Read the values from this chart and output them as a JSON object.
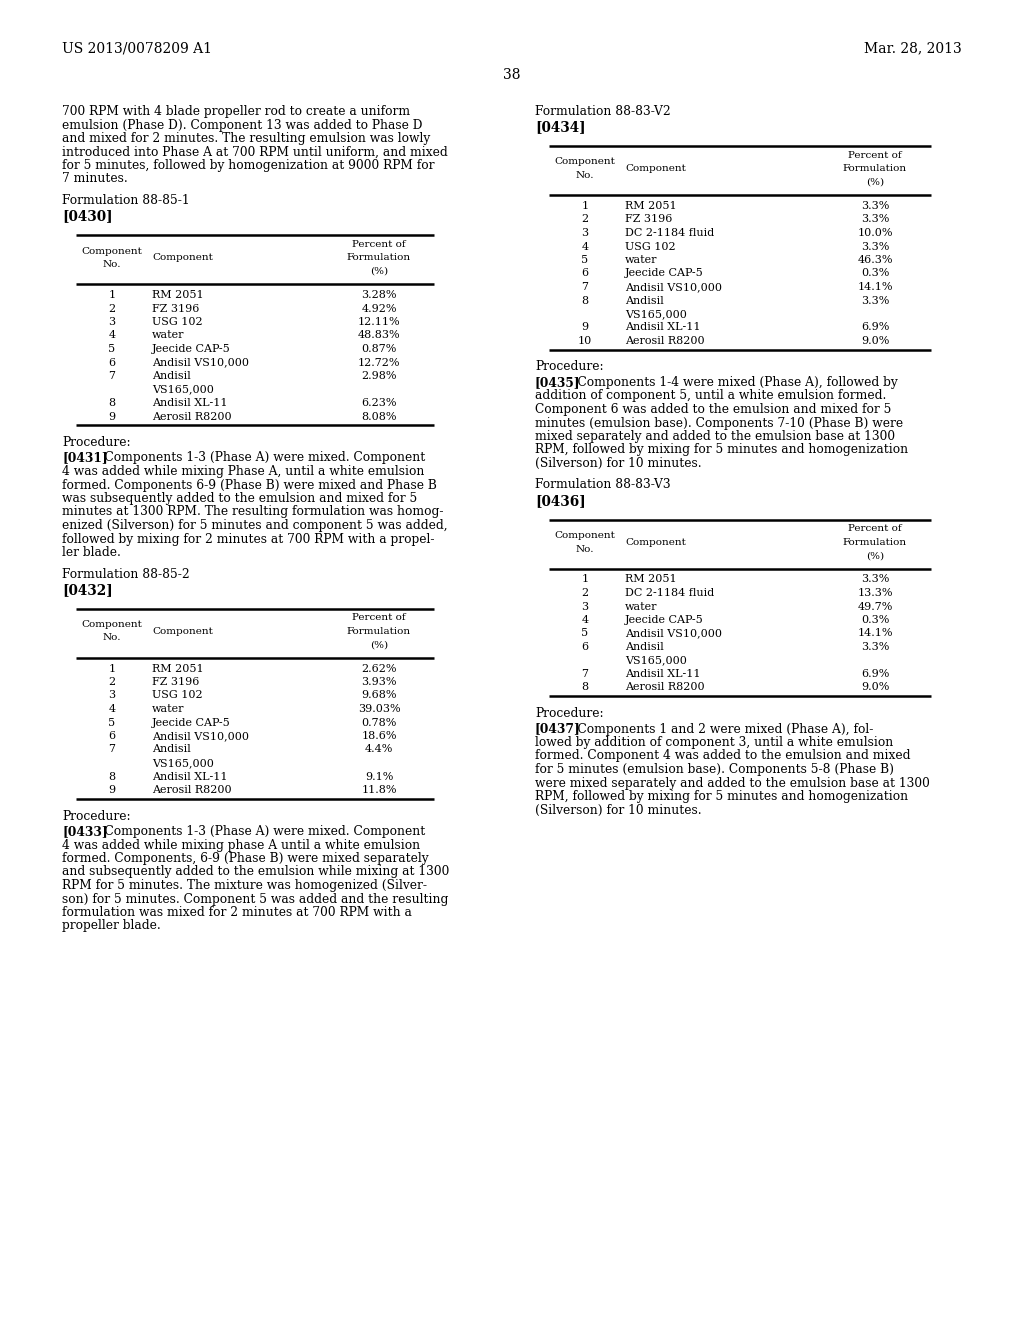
{
  "header_left": "US 2013/0078209 A1",
  "header_right": "Mar. 28, 2013",
  "page_number": "38",
  "bg": "#ffffff",
  "fg": "#000000",
  "intro_lines": [
    "700 RPM with 4 blade propeller rod to create a uniform",
    "emulsion (Phase D). Component 13 was added to Phase D",
    "and mixed for 2 minutes. The resulting emulsion was lowly",
    "introduced into Phase A at 700 RPM until uniform, and mixed",
    "for 5 minutes, followed by homogenization at 9000 RPM for",
    "7 minutes."
  ],
  "f1_title": "Formulation 88-85-1",
  "f1_ref": "[0430]",
  "t1_rows": [
    [
      "1",
      "RM 2051",
      "3.28%"
    ],
    [
      "2",
      "FZ 3196",
      "4.92%"
    ],
    [
      "3",
      "USG 102",
      "12.11%"
    ],
    [
      "4",
      "water",
      "48.83%"
    ],
    [
      "5",
      "Jeecide CAP-5",
      "0.87%"
    ],
    [
      "6",
      "Andisil VS10,000",
      "12.72%"
    ],
    [
      "7a",
      "Andisil",
      "2.98%"
    ],
    [
      "7b",
      "VS165,000",
      ""
    ],
    [
      "8",
      "Andisil XL-11",
      "6.23%"
    ],
    [
      "9",
      "Aerosil R8200",
      "8.08%"
    ]
  ],
  "p1_label": "Procedure:",
  "p1_ref": "[0431]",
  "p1_lines": [
    "[0431]    Components 1-3 (Phase A) were mixed. Component",
    "4 was added while mixing Phase A, until a white emulsion",
    "formed. Components 6-9 (Phase B) were mixed and Phase B",
    "was subsequently added to the emulsion and mixed for 5",
    "minutes at 1300 RPM. The resulting formulation was homog-",
    "enized (Silverson) for 5 minutes and component 5 was added,",
    "followed by mixing for 2 minutes at 700 RPM with a propel-",
    "ler blade."
  ],
  "f2_title": "Formulation 88-85-2",
  "f2_ref": "[0432]",
  "t2_rows": [
    [
      "1",
      "RM 2051",
      "2.62%"
    ],
    [
      "2",
      "FZ 3196",
      "3.93%"
    ],
    [
      "3",
      "USG 102",
      "9.68%"
    ],
    [
      "4",
      "water",
      "39.03%"
    ],
    [
      "5",
      "Jeecide CAP-5",
      "0.78%"
    ],
    [
      "6",
      "Andisil VS10,000",
      "18.6%"
    ],
    [
      "7a",
      "Andisil",
      "4.4%"
    ],
    [
      "7b",
      "VS165,000",
      ""
    ],
    [
      "8",
      "Andisil XL-11",
      "9.1%"
    ],
    [
      "9",
      "Aerosil R8200",
      "11.8%"
    ]
  ],
  "p2_label": "Procedure:",
  "p2_lines": [
    "[0433]    Components 1-3 (Phase A) were mixed. Component",
    "4 was added while mixing phase A until a white emulsion",
    "formed. Components, 6-9 (Phase B) were mixed separately",
    "and subsequently added to the emulsion while mixing at 1300",
    "RPM for 5 minutes. The mixture was homogenized (Silver-",
    "son) for 5 minutes. Component 5 was added and the resulting",
    "formulation was mixed for 2 minutes at 700 RPM with a",
    "propeller blade."
  ],
  "f3_title": "Formulation 88-83-V2",
  "f3_ref": "[0434]",
  "t3_rows": [
    [
      "1",
      "RM 2051",
      "3.3%"
    ],
    [
      "2",
      "FZ 3196",
      "3.3%"
    ],
    [
      "3",
      "DC 2-1184 fluid",
      "10.0%"
    ],
    [
      "4",
      "USG 102",
      "3.3%"
    ],
    [
      "5",
      "water",
      "46.3%"
    ],
    [
      "6",
      "Jeecide CAP-5",
      "0.3%"
    ],
    [
      "7",
      "Andisil VS10,000",
      "14.1%"
    ],
    [
      "8a",
      "Andisil",
      "3.3%"
    ],
    [
      "8b",
      "VS165,000",
      ""
    ],
    [
      "9",
      "Andisil XL-11",
      "6.9%"
    ],
    [
      "10",
      "Aerosil R8200",
      "9.0%"
    ]
  ],
  "p3_label": "Procedure:",
  "p3_lines": [
    "[0435]    Components 1-4 were mixed (Phase A), followed by",
    "addition of component 5, until a white emulsion formed.",
    "Component 6 was added to the emulsion and mixed for 5",
    "minutes (emulsion base). Components 7-10 (Phase B) were",
    "mixed separately and added to the emulsion base at 1300",
    "RPM, followed by mixing for 5 minutes and homogenization",
    "(Silverson) for 10 minutes."
  ],
  "f4_title": "Formulation 88-83-V3",
  "f4_ref": "[0436]",
  "t4_rows": [
    [
      "1",
      "RM 2051",
      "3.3%"
    ],
    [
      "2",
      "DC 2-1184 fluid",
      "13.3%"
    ],
    [
      "3",
      "water",
      "49.7%"
    ],
    [
      "4",
      "Jeecide CAP-5",
      "0.3%"
    ],
    [
      "5",
      "Andisil VS10,000",
      "14.1%"
    ],
    [
      "6a",
      "Andisil",
      "3.3%"
    ],
    [
      "6b",
      "VS165,000",
      ""
    ],
    [
      "7",
      "Andisil XL-11",
      "6.9%"
    ],
    [
      "8",
      "Aerosil R8200",
      "9.0%"
    ]
  ],
  "p4_label": "Procedure:",
  "p4_lines": [
    "[0437]    Components 1 and 2 were mixed (Phase A), fol-",
    "lowed by addition of component 3, until a white emulsion",
    "formed. Component 4 was added to the emulsion and mixed",
    "for 5 minutes (emulsion base). Components 5-8 (Phase B)",
    "were mixed separately and added to the emulsion base at 1300",
    "RPM, followed by mixing for 5 minutes and homogenization",
    "(Silverson) for 10 minutes."
  ]
}
